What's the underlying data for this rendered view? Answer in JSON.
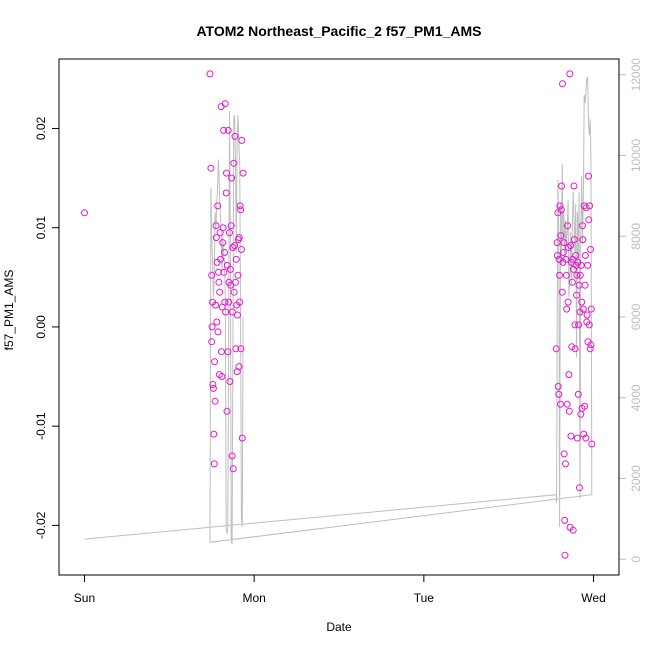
{
  "chart_data": {
    "type": "scatter",
    "title": "ATOM2 Northeast_Pacific_2 f57_PM1_AMS",
    "xlabel": "Date",
    "ylabel": "f57_PM1_AMS",
    "x_unit": "days since Sun 00:00",
    "xticks": [
      {
        "value": 0,
        "label": "Sun"
      },
      {
        "value": 1,
        "label": "Mon"
      },
      {
        "value": 2,
        "label": "Tue"
      },
      {
        "value": 3,
        "label": "Wed"
      }
    ],
    "xlim": [
      -0.15,
      3.15
    ],
    "yticks": [
      {
        "value": -0.02,
        "label": "-0.02"
      },
      {
        "value": -0.01,
        "label": "-0.01"
      },
      {
        "value": 0.0,
        "label": "0.00"
      },
      {
        "value": 0.01,
        "label": "0.01"
      },
      {
        "value": 0.02,
        "label": "0.02"
      }
    ],
    "ylim": [
      -0.025,
      0.027
    ],
    "y2ticks": [
      {
        "value": 0,
        "label": "0"
      },
      {
        "value": 2000,
        "label": "2000"
      },
      {
        "value": 4000,
        "label": "4000"
      },
      {
        "value": 6000,
        "label": "6000"
      },
      {
        "value": 8000,
        "label": "8000"
      },
      {
        "value": 10000,
        "label": "10000"
      },
      {
        "value": 12000,
        "label": "12000"
      }
    ],
    "y2lim": [
      -390,
      12390
    ],
    "colors": {
      "points": "#e619cc",
      "line": "#bebebe",
      "axis2": "#bebebe",
      "axis": "#000000"
    },
    "points": [
      [
        0.0,
        0.0115
      ],
      [
        0.74,
        0.0255
      ],
      [
        0.745,
        0.016
      ],
      [
        0.75,
        0.0052
      ],
      [
        0.75,
        -0.0015
      ],
      [
        0.752,
        0.0
      ],
      [
        0.755,
        0.0025
      ],
      [
        0.757,
        -0.0058
      ],
      [
        0.76,
        -0.0062
      ],
      [
        0.762,
        -0.0108
      ],
      [
        0.765,
        -0.0138
      ],
      [
        0.767,
        -0.0035
      ],
      [
        0.77,
        -0.0075
      ],
      [
        0.772,
        0.0022
      ],
      [
        0.775,
        0.0102
      ],
      [
        0.777,
        0.009
      ],
      [
        0.78,
        0.0005
      ],
      [
        0.782,
        0.0065
      ],
      [
        0.785,
        0.0122
      ],
      [
        0.787,
        -0.0005
      ],
      [
        0.79,
        0.0055
      ],
      [
        0.792,
        0.0045
      ],
      [
        0.795,
        -0.0048
      ],
      [
        0.797,
        0.0035
      ],
      [
        0.8,
        0.0095
      ],
      [
        0.802,
        0.0068
      ],
      [
        0.805,
        0.0222
      ],
      [
        0.807,
        -0.0025
      ],
      [
        0.81,
        -0.005
      ],
      [
        0.812,
        0.002
      ],
      [
        0.815,
        0.0085
      ],
      [
        0.817,
        0.01
      ],
      [
        0.82,
        0.0198
      ],
      [
        0.822,
        0.0055
      ],
      [
        0.825,
        0.0075
      ],
      [
        0.827,
        0.0025
      ],
      [
        0.83,
        0.0225
      ],
      [
        0.832,
        0.0015
      ],
      [
        0.835,
        0.0135
      ],
      [
        0.837,
        0.0155
      ],
      [
        0.84,
        -0.0085
      ],
      [
        0.842,
        0.0062
      ],
      [
        0.845,
        -0.0025
      ],
      [
        0.847,
        0.0198
      ],
      [
        0.85,
        0.0025
      ],
      [
        0.852,
        0.0045
      ],
      [
        0.855,
        0.0095
      ],
      [
        0.857,
        -0.0055
      ],
      [
        0.86,
        0.0058
      ],
      [
        0.862,
        0.0042
      ],
      [
        0.865,
        0.0102
      ],
      [
        0.867,
        0.015
      ],
      [
        0.87,
        -0.013
      ],
      [
        0.872,
        0.0015
      ],
      [
        0.875,
        0.008
      ],
      [
        0.877,
        -0.0143
      ],
      [
        0.88,
        0.0165
      ],
      [
        0.882,
        0.0035
      ],
      [
        0.885,
        0.0082
      ],
      [
        0.887,
        0.0192
      ],
      [
        0.89,
        0.0045
      ],
      [
        0.892,
        -0.0022
      ],
      [
        0.895,
        0.0068
      ],
      [
        0.897,
        0.0022
      ],
      [
        0.9,
        -0.0045
      ],
      [
        0.902,
        0.0012
      ],
      [
        0.905,
        0.0052
      ],
      [
        0.907,
        0.0088
      ],
      [
        0.91,
        -0.004
      ],
      [
        0.912,
        0.009
      ],
      [
        0.915,
        0.0025
      ],
      [
        0.917,
        0.0122
      ],
      [
        0.92,
        0.0118
      ],
      [
        0.922,
        -0.0022
      ],
      [
        0.925,
        0.0078
      ],
      [
        0.927,
        0.0188
      ],
      [
        0.93,
        -0.0112
      ],
      [
        0.935,
        0.0155
      ],
      [
        2.78,
        -0.0022
      ],
      [
        2.785,
        0.0085
      ],
      [
        2.787,
        0.0072
      ],
      [
        2.79,
        0.0115
      ],
      [
        2.792,
        -0.006
      ],
      [
        2.795,
        -0.0068
      ],
      [
        2.797,
        0.0068
      ],
      [
        2.8,
        0.0052
      ],
      [
        2.802,
        0.0122
      ],
      [
        2.805,
        -0.0078
      ],
      [
        2.807,
        0.0092
      ],
      [
        2.81,
        0.0118
      ],
      [
        2.812,
        0.0142
      ],
      [
        2.815,
        0.0035
      ],
      [
        2.817,
        0.0245
      ],
      [
        2.82,
        0.0065
      ],
      [
        2.822,
        0.0075
      ],
      [
        2.825,
        0.0085
      ],
      [
        2.827,
        -0.0128
      ],
      [
        2.83,
        -0.0195
      ],
      [
        2.832,
        -0.023
      ],
      [
        2.835,
        -0.0138
      ],
      [
        2.837,
        0.0068
      ],
      [
        2.84,
        0.0052
      ],
      [
        2.842,
        0.0018
      ],
      [
        2.845,
        -0.0078
      ],
      [
        2.847,
        0.0102
      ],
      [
        2.85,
        0.0025
      ],
      [
        2.852,
        0.008
      ],
      [
        2.855,
        -0.0048
      ],
      [
        2.857,
        -0.0085
      ],
      [
        2.86,
        0.0255
      ],
      [
        2.862,
        -0.0202
      ],
      [
        2.865,
        0.0082
      ],
      [
        2.867,
        -0.011
      ],
      [
        2.87,
        0.0065
      ],
      [
        2.872,
        -0.002
      ],
      [
        2.875,
        0.0045
      ],
      [
        2.877,
        0.0068
      ],
      [
        2.88,
        -0.0205
      ],
      [
        2.882,
        0.0058
      ],
      [
        2.885,
        0.0142
      ],
      [
        2.887,
        0.0088
      ],
      [
        2.89,
        0.0002
      ],
      [
        2.892,
        -0.0022
      ],
      [
        2.895,
        0.0072
      ],
      [
        2.897,
        0.0062
      ],
      [
        2.9,
        0.0032
      ],
      [
        2.902,
        0.0052
      ],
      [
        2.905,
        -0.0112
      ],
      [
        2.907,
        0.0065
      ],
      [
        2.91,
        -0.0068
      ],
      [
        2.912,
        0.0002
      ],
      [
        2.915,
        0.0042
      ],
      [
        2.917,
        -0.0162
      ],
      [
        2.92,
        0.0015
      ],
      [
        2.922,
        0.0052
      ],
      [
        2.925,
        -0.0088
      ],
      [
        2.927,
        0.0062
      ],
      [
        2.93,
        0.0025
      ],
      [
        2.932,
        -0.0082
      ],
      [
        2.935,
        0.0102
      ],
      [
        2.937,
        0.0088
      ],
      [
        2.94,
        0.0018
      ],
      [
        2.942,
        -0.0108
      ],
      [
        2.945,
        0.0122
      ],
      [
        2.947,
        -0.008
      ],
      [
        2.95,
        0.0042
      ],
      [
        2.952,
        0.0072
      ],
      [
        2.955,
        -0.0112
      ],
      [
        2.957,
        0.012
      ],
      [
        2.96,
        0.0005
      ],
      [
        2.962,
        0.0012
      ],
      [
        2.965,
        0.0062
      ],
      [
        2.967,
        -0.0015
      ],
      [
        2.97,
        0.0152
      ],
      [
        2.972,
        0.0108
      ],
      [
        2.975,
        0.0002
      ],
      [
        2.977,
        0.0122
      ],
      [
        2.98,
        -0.0022
      ],
      [
        2.982,
        0.0078
      ],
      [
        2.985,
        -0.0018
      ],
      [
        2.987,
        0.0018
      ],
      [
        2.99,
        -0.0118
      ]
    ],
    "series2": [
      [
        0.0,
        500
      ],
      [
        2.78,
        1600
      ],
      [
        2.782,
        1400
      ],
      [
        2.785,
        5500
      ],
      [
        2.79,
        9400
      ],
      [
        2.795,
        8000
      ],
      [
        2.8,
        800
      ],
      [
        2.805,
        8800
      ],
      [
        2.81,
        7300
      ],
      [
        2.815,
        9800
      ],
      [
        2.82,
        7800
      ],
      [
        2.825,
        8600
      ],
      [
        2.83,
        7400
      ],
      [
        2.835,
        8400
      ],
      [
        2.84,
        7800
      ],
      [
        2.845,
        8100
      ],
      [
        2.85,
        8900
      ],
      [
        2.855,
        6500
      ],
      [
        2.86,
        7000
      ],
      [
        2.865,
        8100
      ],
      [
        2.87,
        6800
      ],
      [
        2.875,
        8200
      ],
      [
        2.88,
        9100
      ],
      [
        2.885,
        8400
      ],
      [
        2.89,
        7600
      ],
      [
        2.895,
        8800
      ],
      [
        2.9,
        5000
      ],
      [
        2.905,
        8600
      ],
      [
        2.91,
        7400
      ],
      [
        2.915,
        9100
      ],
      [
        2.92,
        1500
      ],
      [
        2.925,
        8000
      ],
      [
        2.93,
        9500
      ],
      [
        2.935,
        7800
      ],
      [
        2.94,
        9000
      ],
      [
        2.945,
        11500
      ],
      [
        2.95,
        11300
      ],
      [
        2.96,
        11900
      ],
      [
        2.965,
        11950
      ],
      [
        2.97,
        10800
      ],
      [
        2.975,
        10500
      ],
      [
        2.98,
        10900
      ],
      [
        2.985,
        9800
      ],
      [
        2.99,
        1600
      ],
      [
        0.74,
        420
      ],
      [
        0.745,
        9200
      ],
      [
        0.75,
        8000
      ],
      [
        0.755,
        7300
      ],
      [
        0.76,
        6500
      ],
      [
        0.765,
        7000
      ],
      [
        0.77,
        8600
      ],
      [
        0.775,
        8200
      ],
      [
        0.78,
        8800
      ],
      [
        0.785,
        9300
      ],
      [
        0.79,
        9900
      ],
      [
        0.795,
        9200
      ],
      [
        0.8,
        8600
      ],
      [
        0.805,
        8200
      ],
      [
        0.81,
        7100
      ],
      [
        0.815,
        8000
      ],
      [
        0.82,
        7600
      ],
      [
        0.825,
        7400
      ],
      [
        0.83,
        6500
      ],
      [
        0.835,
        700
      ],
      [
        0.84,
        650
      ],
      [
        0.845,
        800
      ],
      [
        0.85,
        5600
      ],
      [
        0.855,
        11100
      ],
      [
        0.86,
        7800
      ],
      [
        0.865,
        450
      ],
      [
        0.87,
        380
      ],
      [
        0.875,
        5200
      ],
      [
        0.88,
        10900
      ],
      [
        0.885,
        11000
      ],
      [
        0.89,
        9800
      ],
      [
        0.895,
        7600
      ],
      [
        0.9,
        10500
      ],
      [
        0.905,
        11000
      ],
      [
        0.91,
        10300
      ],
      [
        0.915,
        9800
      ],
      [
        0.92,
        6000
      ],
      [
        0.925,
        1000
      ],
      [
        0.93,
        800
      ],
      [
        0.935,
        6000
      ]
    ]
  }
}
